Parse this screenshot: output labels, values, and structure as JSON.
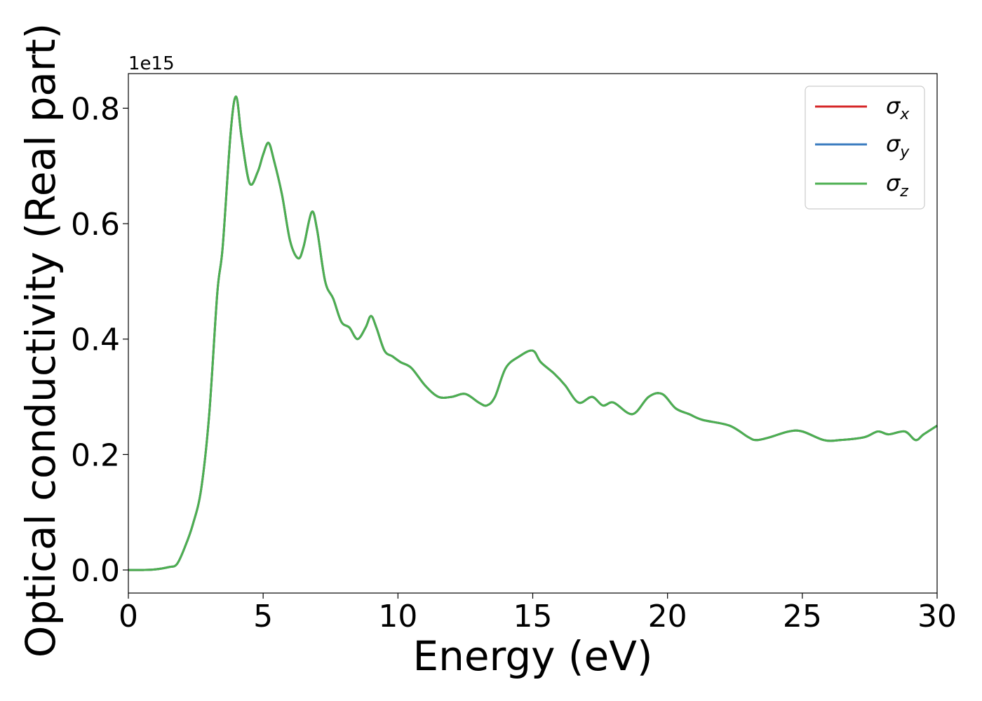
{
  "chart_data": {
    "type": "line",
    "xlabel": "Energy (eV)",
    "ylabel": "Optical conductivity (Real part)",
    "y_offset_label": "1e15",
    "xlim": [
      0,
      30
    ],
    "ylim": [
      -0.04,
      0.86
    ],
    "x_ticks": [
      0,
      5,
      10,
      15,
      20,
      25,
      30
    ],
    "x_tick_labels": [
      "0",
      "5",
      "10",
      "15",
      "20",
      "25",
      "30"
    ],
    "y_ticks": [
      0.0,
      0.2,
      0.4,
      0.6,
      0.8
    ],
    "y_tick_labels": [
      "0.0",
      "0.2",
      "0.4",
      "0.6",
      "0.8"
    ],
    "grid": false,
    "legend_placement": "top-right",
    "series": [
      {
        "name": "σx",
        "symbol": "σ",
        "subscript": "x",
        "color": "#d62728"
      },
      {
        "name": "σy",
        "symbol": "σ",
        "subscript": "y",
        "color": "#3a7bbf"
      },
      {
        "name": "σz",
        "symbol": "σ",
        "subscript": "z",
        "color": "#4caf50"
      }
    ],
    "shared_values": {
      "x": [
        0,
        0.5,
        1,
        1.5,
        1.8,
        2.1,
        2.4,
        2.7,
        3,
        3.3,
        3.5,
        3.8,
        4,
        4.2,
        4.5,
        4.8,
        5,
        5.2,
        5.4,
        5.7,
        6,
        6.3,
        6.5,
        6.8,
        7,
        7.3,
        7.6,
        7.9,
        8.2,
        8.5,
        8.8,
        9,
        9.2,
        9.5,
        9.8,
        10.1,
        10.5,
        11,
        11.5,
        12,
        12.5,
        13,
        13.3,
        13.6,
        14,
        14.5,
        15,
        15.3,
        15.8,
        16.2,
        16.7,
        17.2,
        17.6,
        18,
        18.7,
        19.3,
        19.8,
        20.3,
        20.8,
        21.3,
        22.3,
        23,
        23.3,
        23.8,
        24.5,
        25,
        25.8,
        26.4,
        27.3,
        27.8,
        28.2,
        28.8,
        29.2,
        29.5,
        30
      ],
      "y": [
        0.0,
        0.0,
        0.001,
        0.005,
        0.01,
        0.04,
        0.08,
        0.14,
        0.27,
        0.48,
        0.56,
        0.76,
        0.82,
        0.75,
        0.67,
        0.69,
        0.72,
        0.74,
        0.71,
        0.65,
        0.57,
        0.54,
        0.56,
        0.62,
        0.59,
        0.5,
        0.47,
        0.43,
        0.42,
        0.4,
        0.42,
        0.44,
        0.42,
        0.38,
        0.37,
        0.36,
        0.35,
        0.32,
        0.3,
        0.3,
        0.305,
        0.29,
        0.285,
        0.3,
        0.35,
        0.37,
        0.38,
        0.36,
        0.34,
        0.32,
        0.29,
        0.3,
        0.285,
        0.29,
        0.27,
        0.3,
        0.305,
        0.28,
        0.27,
        0.26,
        0.25,
        0.23,
        0.225,
        0.23,
        0.24,
        0.24,
        0.225,
        0.225,
        0.23,
        0.24,
        0.235,
        0.24,
        0.225,
        0.235,
        0.25
      ]
    }
  }
}
